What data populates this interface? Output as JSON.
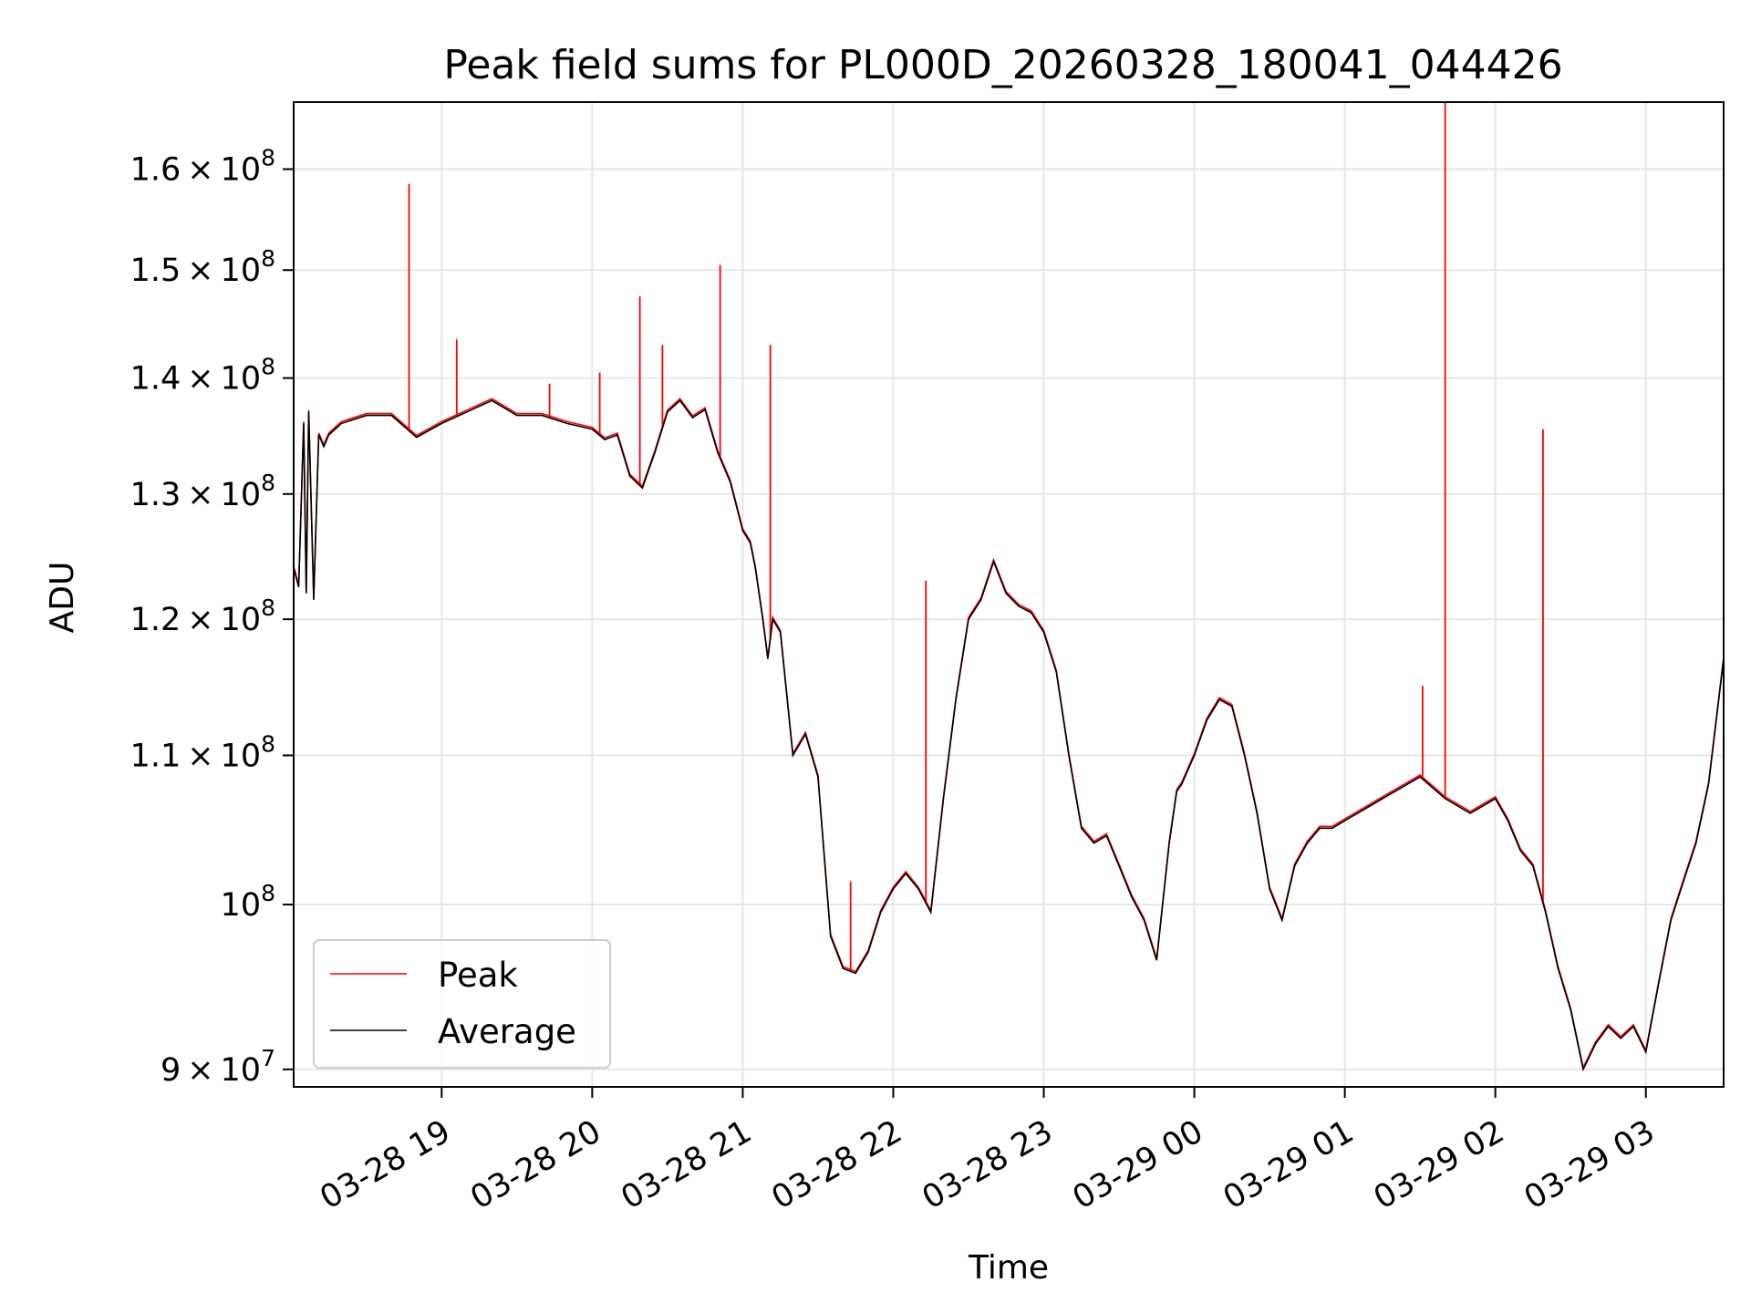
{
  "chart_data": {
    "type": "line",
    "title": "Peak field sums for PL000D_20260328_180041_044426",
    "xlabel": "Time",
    "ylabel": "ADU",
    "y_scale": "log",
    "ylim": [
      89000000,
      167000000
    ],
    "xlim": [
      "2026-03-28 18:01",
      "2026-03-29 03:31"
    ],
    "grid": true,
    "legend_position": "lower-left",
    "x_ticks": [
      {
        "t": "2026-03-28 19:00",
        "label": "03-28 19"
      },
      {
        "t": "2026-03-28 20:00",
        "label": "03-28 20"
      },
      {
        "t": "2026-03-28 21:00",
        "label": "03-28 21"
      },
      {
        "t": "2026-03-28 22:00",
        "label": "03-28 22"
      },
      {
        "t": "2026-03-28 23:00",
        "label": "03-28 23"
      },
      {
        "t": "2026-03-29 00:00",
        "label": "03-29 00"
      },
      {
        "t": "2026-03-29 01:00",
        "label": "03-29 01"
      },
      {
        "t": "2026-03-29 02:00",
        "label": "03-29 02"
      },
      {
        "t": "2026-03-29 03:00",
        "label": "03-29 03"
      }
    ],
    "y_ticks": [
      {
        "value": 90000000,
        "mantissa": "9",
        "exponent": "7"
      },
      {
        "value": 100000000,
        "mantissa": "",
        "exponent": "8"
      },
      {
        "value": 110000000,
        "mantissa": "1.1",
        "exponent": "8"
      },
      {
        "value": 120000000,
        "mantissa": "1.2",
        "exponent": "8"
      },
      {
        "value": 130000000,
        "mantissa": "1.3",
        "exponent": "8"
      },
      {
        "value": 140000000,
        "mantissa": "1.4",
        "exponent": "8"
      },
      {
        "value": 150000000,
        "mantissa": "1.5",
        "exponent": "8"
      },
      {
        "value": 160000000,
        "mantissa": "1.6",
        "exponent": "8"
      }
    ],
    "series": [
      {
        "name": "Average",
        "color": "#000000",
        "x": [
          "2026-03-28 18:01",
          "2026-03-28 18:03",
          "2026-03-28 18:05",
          "2026-03-28 18:06",
          "2026-03-28 18:07",
          "2026-03-28 18:09",
          "2026-03-28 18:11",
          "2026-03-28 18:12",
          "2026-03-28 18:13",
          "2026-03-28 18:15",
          "2026-03-28 18:20",
          "2026-03-28 18:30",
          "2026-03-28 18:40",
          "2026-03-28 18:50",
          "2026-03-28 19:00",
          "2026-03-28 19:10",
          "2026-03-28 19:20",
          "2026-03-28 19:30",
          "2026-03-28 19:40",
          "2026-03-28 19:50",
          "2026-03-28 20:00",
          "2026-03-28 20:05",
          "2026-03-28 20:10",
          "2026-03-28 20:15",
          "2026-03-28 20:20",
          "2026-03-28 20:25",
          "2026-03-28 20:30",
          "2026-03-28 20:35",
          "2026-03-28 20:40",
          "2026-03-28 20:45",
          "2026-03-28 20:50",
          "2026-03-28 20:55",
          "2026-03-28 21:00",
          "2026-03-28 21:03",
          "2026-03-28 21:05",
          "2026-03-28 21:08",
          "2026-03-28 21:10",
          "2026-03-28 21:12",
          "2026-03-28 21:15",
          "2026-03-28 21:20",
          "2026-03-28 21:25",
          "2026-03-28 21:30",
          "2026-03-28 21:35",
          "2026-03-28 21:40",
          "2026-03-28 21:45",
          "2026-03-28 21:50",
          "2026-03-28 21:55",
          "2026-03-28 22:00",
          "2026-03-28 22:05",
          "2026-03-28 22:10",
          "2026-03-28 22:15",
          "2026-03-28 22:20",
          "2026-03-28 22:25",
          "2026-03-28 22:30",
          "2026-03-28 22:35",
          "2026-03-28 22:40",
          "2026-03-28 22:45",
          "2026-03-28 22:50",
          "2026-03-28 22:55",
          "2026-03-28 23:00",
          "2026-03-28 23:05",
          "2026-03-28 23:10",
          "2026-03-28 23:15",
          "2026-03-28 23:20",
          "2026-03-28 23:25",
          "2026-03-28 23:30",
          "2026-03-28 23:35",
          "2026-03-28 23:40",
          "2026-03-28 23:45",
          "2026-03-28 23:50",
          "2026-03-28 23:53",
          "2026-03-28 23:55",
          "2026-03-29 00:00",
          "2026-03-29 00:05",
          "2026-03-29 00:10",
          "2026-03-29 00:15",
          "2026-03-29 00:20",
          "2026-03-29 00:25",
          "2026-03-29 00:30",
          "2026-03-29 00:35",
          "2026-03-29 00:40",
          "2026-03-29 00:45",
          "2026-03-29 00:50",
          "2026-03-29 00:55",
          "2026-03-29 01:00",
          "2026-03-29 01:10",
          "2026-03-29 01:20",
          "2026-03-29 01:30",
          "2026-03-29 01:40",
          "2026-03-29 01:50",
          "2026-03-29 02:00",
          "2026-03-29 02:05",
          "2026-03-29 02:10",
          "2026-03-29 02:15",
          "2026-03-29 02:20",
          "2026-03-29 02:25",
          "2026-03-29 02:30",
          "2026-03-29 02:35",
          "2026-03-29 02:40",
          "2026-03-29 02:45",
          "2026-03-29 02:50",
          "2026-03-29 02:55",
          "2026-03-29 03:00",
          "2026-03-29 03:05",
          "2026-03-29 03:10",
          "2026-03-29 03:15",
          "2026-03-29 03:20",
          "2026-03-29 03:25",
          "2026-03-29 03:31"
        ],
        "y": [
          124000000,
          122500000,
          136000000,
          122000000,
          137000000,
          121500000,
          135000000,
          134500000,
          134000000,
          135000000,
          136000000,
          136700000,
          136700000,
          134800000,
          136000000,
          137000000,
          138000000,
          136700000,
          136700000,
          136000000,
          135500000,
          134600000,
          135000000,
          131500000,
          130500000,
          133500000,
          137000000,
          138000000,
          136500000,
          137200000,
          133500000,
          131000000,
          127000000,
          126000000,
          124000000,
          120000000,
          117000000,
          120000000,
          119000000,
          110000000,
          111500000,
          108500000,
          98000000,
          96000000,
          95700000,
          97000000,
          99500000,
          101000000,
          102000000,
          101000000,
          99500000,
          107000000,
          114000000,
          120000000,
          121500000,
          124500000,
          122000000,
          121000000,
          120500000,
          119000000,
          116000000,
          110000000,
          105000000,
          104000000,
          104500000,
          102500000,
          100500000,
          99000000,
          96500000,
          104000000,
          107500000,
          108000000,
          110000000,
          112500000,
          114000000,
          113500000,
          110000000,
          106000000,
          101000000,
          99000000,
          102500000,
          104000000,
          105000000,
          105000000,
          105500000,
          106500000,
          107500000,
          108500000,
          107000000,
          106000000,
          107000000,
          105500000,
          103500000,
          102500000,
          99500000,
          96000000,
          93500000,
          90000000,
          91500000,
          92500000,
          91800000,
          92500000,
          91000000,
          95000000,
          99000000,
          101500000,
          104000000,
          108000000,
          117000000
        ]
      },
      {
        "name": "Peak",
        "color": "#ff0000",
        "spikes": [
          {
            "t": "2026-03-28 18:47",
            "value": 158500000
          },
          {
            "t": "2026-03-28 19:06",
            "value": 143500000
          },
          {
            "t": "2026-03-28 19:43",
            "value": 139500000
          },
          {
            "t": "2026-03-28 20:03",
            "value": 140500000
          },
          {
            "t": "2026-03-28 20:19",
            "value": 147500000
          },
          {
            "t": "2026-03-28 20:28",
            "value": 143000000
          },
          {
            "t": "2026-03-28 20:51",
            "value": 150500000
          },
          {
            "t": "2026-03-28 21:11",
            "value": 143000000
          },
          {
            "t": "2026-03-28 21:43",
            "value": 101500000
          },
          {
            "t": "2026-03-28 22:13",
            "value": 123000000
          },
          {
            "t": "2026-03-29 01:31",
            "value": 115000000
          },
          {
            "t": "2026-03-29 01:40",
            "value": 167000000
          },
          {
            "t": "2026-03-29 02:19",
            "value": 135500000
          }
        ]
      }
    ]
  }
}
